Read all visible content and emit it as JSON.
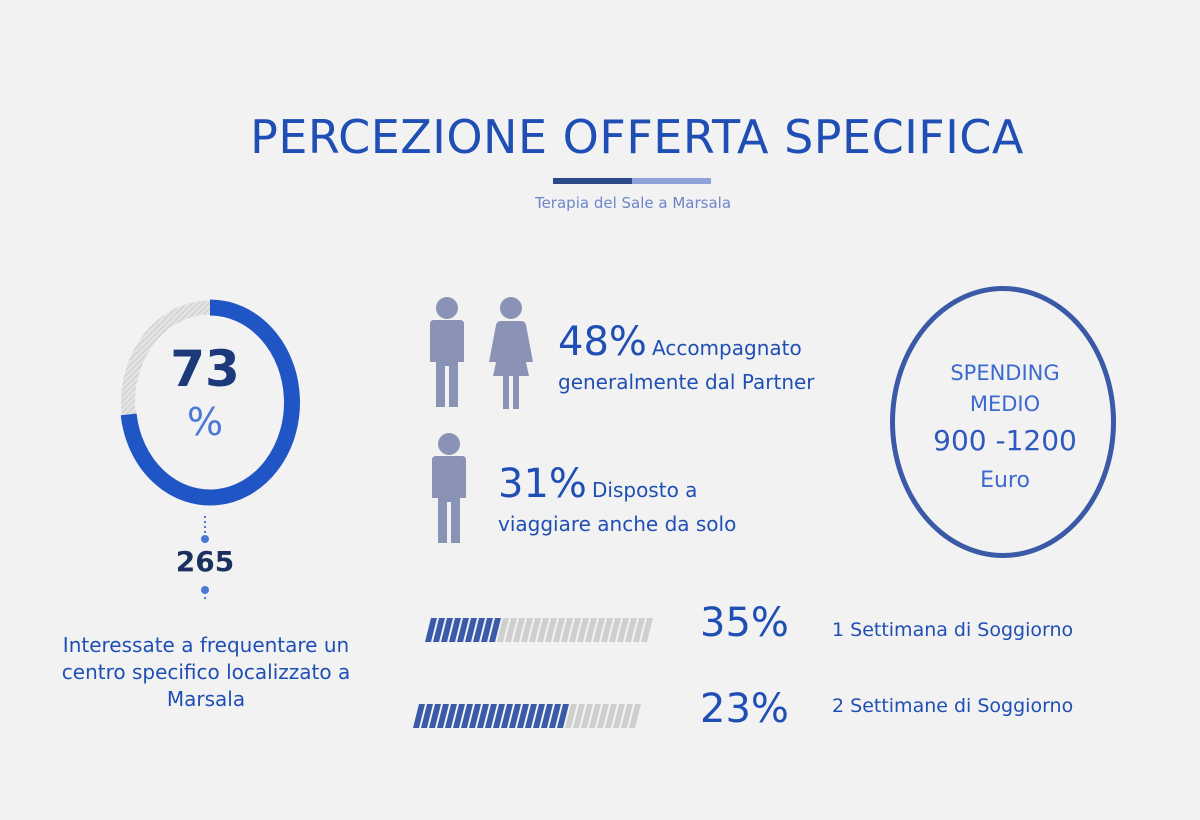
{
  "header": {
    "title": "PERCEZIONE OFFERTA SPECIFICA",
    "subtitle": "Terapia del Sale a Marsala"
  },
  "donut": {
    "number": "73",
    "percent_sign": "%",
    "value_fraction": 0.73,
    "count": "265",
    "description": "Interessate a frequentare un centro specifico localizzato a Marsala",
    "colors": {
      "filled": "#1f55c4",
      "empty": "#c9c9c9"
    }
  },
  "people_stats": [
    {
      "percent": "48%",
      "text_first": "Accompagnato",
      "text_rest": "generalmente dal Partner",
      "icons": [
        "male-person-icon",
        "female-person-icon"
      ]
    },
    {
      "percent": "31%",
      "text_first": "Disposto a",
      "text_rest": "viaggiare anche da solo",
      "icons": [
        "male-person-icon"
      ]
    }
  ],
  "spending": {
    "label_line1": "SPENDING",
    "label_line2": "MEDIO",
    "range": "900 -1200",
    "unit": "Euro"
  },
  "bars": [
    {
      "percent": "35%",
      "value": 0.35,
      "label": "1 Settimana di Soggiorno"
    },
    {
      "percent": "23%",
      "value": 0.23,
      "label": "2 Settimane  di Soggiorno"
    }
  ],
  "colors": {
    "accent": "#1f4fb4",
    "icon_gray": "#8a93b5",
    "bar_filled": "#3a5aa8",
    "bar_empty": "#cfcfcf"
  }
}
